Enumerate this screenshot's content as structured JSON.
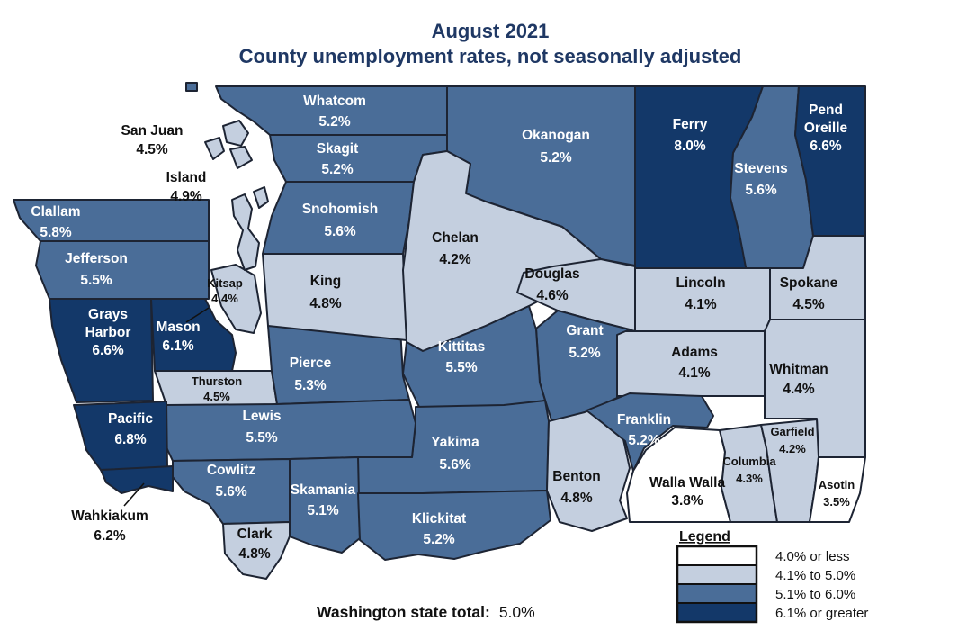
{
  "title": {
    "line1": "August 2021",
    "line2": "County unemployment rates, not seasonally adjusted"
  },
  "footer": {
    "label": "Washington state total:",
    "value": "5.0%"
  },
  "legend": {
    "title": "Legend",
    "items": [
      {
        "label": "4.0% or less",
        "color": "#ffffff"
      },
      {
        "label": "4.1% to 5.0%",
        "color": "#c4cfdf"
      },
      {
        "label": "5.1% to 6.0%",
        "color": "#4a6d98"
      },
      {
        "label": "6.1% or greater",
        "color": "#133869"
      }
    ]
  },
  "map_data": {
    "type": "choropleth",
    "region": "Washington state counties",
    "metric": "County unemployment rate, percent, August 2021, not seasonally adjusted",
    "state_total": "5.0%"
  },
  "counties": {
    "whatcom": {
      "name": "Whatcom",
      "rate": "5.2%",
      "lines": [
        "Whatcom",
        "5.2%"
      ]
    },
    "san_juan": {
      "name": "San Juan",
      "rate": "4.5%",
      "lines": [
        "San Juan",
        "4.5%"
      ]
    },
    "skagit": {
      "name": "Skagit",
      "rate": "5.2%",
      "lines": [
        "Skagit",
        "5.2%"
      ]
    },
    "island": {
      "name": "Island",
      "rate": "4.9%",
      "lines": [
        "Island",
        "4.9%"
      ]
    },
    "snohomish": {
      "name": "Snohomish",
      "rate": "5.6%",
      "lines": [
        "Snohomish",
        "5.6%"
      ]
    },
    "okanogan": {
      "name": "Okanogan",
      "rate": "5.2%",
      "lines": [
        "Okanogan",
        "5.2%"
      ]
    },
    "ferry": {
      "name": "Ferry",
      "rate": "8.0%",
      "lines": [
        "Ferry",
        "8.0%"
      ]
    },
    "stevens": {
      "name": "Stevens",
      "rate": "5.6%",
      "lines": [
        "Stevens",
        "5.6%"
      ]
    },
    "pend_oreille": {
      "name": "Pend Oreille",
      "rate": "6.6%",
      "lines": [
        "Pend",
        "Oreille",
        "6.6%"
      ]
    },
    "clallam": {
      "name": "Clallam",
      "rate": "5.8%",
      "lines": [
        "Clallam",
        "5.8%"
      ]
    },
    "jefferson": {
      "name": "Jefferson",
      "rate": "5.5%",
      "lines": [
        "Jefferson",
        "5.5%"
      ]
    },
    "chelan": {
      "name": "Chelan",
      "rate": "4.2%",
      "lines": [
        "Chelan",
        "4.2%"
      ]
    },
    "douglas": {
      "name": "Douglas",
      "rate": "4.6%",
      "lines": [
        "Douglas",
        "4.6%"
      ]
    },
    "king": {
      "name": "King",
      "rate": "4.8%",
      "lines": [
        "King",
        "4.8%"
      ]
    },
    "kitsap": {
      "name": "Kitsap",
      "rate": "4.4%",
      "lines": [
        "Kitsap",
        "4.4%"
      ]
    },
    "grays_harbor": {
      "name": "Grays Harbor",
      "rate": "6.6%",
      "lines": [
        "Grays",
        "Harbor",
        "6.6%"
      ]
    },
    "mason": {
      "name": "Mason",
      "rate": "6.1%",
      "lines": [
        "Mason",
        "6.1%"
      ]
    },
    "lincoln": {
      "name": "Lincoln",
      "rate": "4.1%",
      "lines": [
        "Lincoln",
        "4.1%"
      ]
    },
    "spokane": {
      "name": "Spokane",
      "rate": "4.5%",
      "lines": [
        "Spokane",
        "4.5%"
      ]
    },
    "grant": {
      "name": "Grant",
      "rate": "5.2%",
      "lines": [
        "Grant",
        "5.2%"
      ]
    },
    "kittitas": {
      "name": "Kittitas",
      "rate": "5.5%",
      "lines": [
        "Kittitas",
        "5.5%"
      ]
    },
    "adams": {
      "name": "Adams",
      "rate": "4.1%",
      "lines": [
        "Adams",
        "4.1%"
      ]
    },
    "whitman": {
      "name": "Whitman",
      "rate": "4.4%",
      "lines": [
        "Whitman",
        "4.4%"
      ]
    },
    "pierce": {
      "name": "Pierce",
      "rate": "5.3%",
      "lines": [
        "Pierce",
        "5.3%"
      ]
    },
    "thurston": {
      "name": "Thurston",
      "rate": "4.5%",
      "lines": [
        "Thurston",
        "4.5%"
      ]
    },
    "lewis": {
      "name": "Lewis",
      "rate": "5.5%",
      "lines": [
        "Lewis",
        "5.5%"
      ]
    },
    "pacific": {
      "name": "Pacific",
      "rate": "6.8%",
      "lines": [
        "Pacific",
        "6.8%"
      ]
    },
    "yakima": {
      "name": "Yakima",
      "rate": "5.6%",
      "lines": [
        "Yakima",
        "5.6%"
      ]
    },
    "franklin": {
      "name": "Franklin",
      "rate": "5.2%",
      "lines": [
        "Franklin",
        "5.2%"
      ]
    },
    "benton": {
      "name": "Benton",
      "rate": "4.8%",
      "lines": [
        "Benton",
        "4.8%"
      ]
    },
    "walla_walla": {
      "name": "Walla Walla",
      "rate": "3.8%",
      "lines": [
        "Walla Walla",
        "3.8%"
      ]
    },
    "columbia": {
      "name": "Columbia",
      "rate": "4.3%",
      "lines": [
        "Columbia",
        "4.3%"
      ]
    },
    "garfield": {
      "name": "Garfield",
      "rate": "4.2%",
      "lines": [
        "Garfield",
        "4.2%"
      ]
    },
    "asotin": {
      "name": "Asotin",
      "rate": "3.5%",
      "lines": [
        "Asotin",
        "3.5%"
      ]
    },
    "cowlitz": {
      "name": "Cowlitz",
      "rate": "5.6%",
      "lines": [
        "Cowlitz",
        "5.6%"
      ]
    },
    "wahkiakum": {
      "name": "Wahkiakum",
      "rate": "6.2%",
      "lines": [
        "Wahkiakum",
        "6.2%"
      ]
    },
    "clark": {
      "name": "Clark",
      "rate": "4.8%",
      "lines": [
        "Clark",
        "4.8%"
      ]
    },
    "skamania": {
      "name": "Skamania",
      "rate": "5.1%",
      "lines": [
        "Skamania",
        "5.1%"
      ]
    },
    "klickitat": {
      "name": "Klickitat",
      "rate": "5.2%",
      "lines": [
        "Klickitat",
        "5.2%"
      ]
    }
  }
}
